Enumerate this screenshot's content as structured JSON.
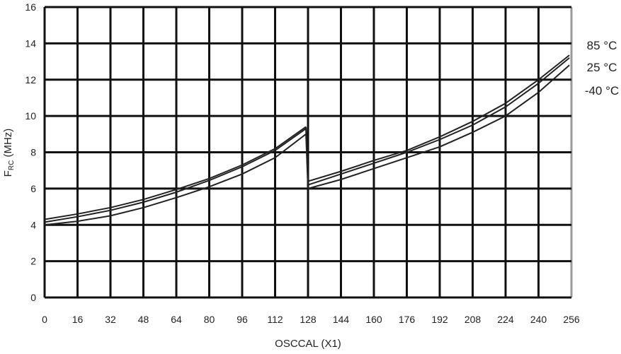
{
  "chart_data": {
    "type": "line",
    "title": "",
    "xlabel": "OSCCAL (X1)",
    "ylabel_main": "F",
    "ylabel_sub": "RC",
    "ylabel_unit": " (MHz)",
    "xlim": [
      0,
      256
    ],
    "ylim": [
      0,
      16
    ],
    "xticks": [
      0,
      16,
      32,
      48,
      64,
      80,
      96,
      112,
      128,
      144,
      160,
      176,
      192,
      208,
      224,
      240,
      256
    ],
    "yticks": [
      0,
      2,
      4,
      6,
      8,
      10,
      12,
      14,
      16
    ],
    "grid": true,
    "legend": "right (labels at curve ends)",
    "series": [
      {
        "name": "85 °C",
        "segments": [
          {
            "x": [
              0,
              16,
              32,
              48,
              64,
              80,
              96,
              112,
              127
            ],
            "y": [
              4.3,
              4.6,
              4.95,
              5.4,
              5.95,
              6.55,
              7.3,
              8.2,
              9.4
            ]
          },
          {
            "x": [
              128,
              144,
              160,
              176,
              192,
              208,
              224,
              240,
              255
            ],
            "y": [
              6.4,
              6.95,
              7.55,
              8.1,
              8.85,
              9.7,
              10.7,
              12.0,
              13.35
            ]
          }
        ]
      },
      {
        "name": "25 °C",
        "segments": [
          {
            "x": [
              0,
              16,
              32,
              48,
              64,
              80,
              96,
              112,
              127
            ],
            "y": [
              4.15,
              4.45,
              4.8,
              5.25,
              5.8,
              6.45,
              7.2,
              8.1,
              9.3
            ]
          },
          {
            "x": [
              128,
              144,
              160,
              176,
              192,
              208,
              224,
              240,
              255
            ],
            "y": [
              6.2,
              6.8,
              7.4,
              8.0,
              8.7,
              9.5,
              10.5,
              11.8,
              13.2
            ]
          }
        ]
      },
      {
        "name": "-40 °C",
        "segments": [
          {
            "x": [
              0,
              16,
              32,
              48,
              64,
              80,
              96,
              112,
              127
            ],
            "y": [
              4.0,
              4.2,
              4.5,
              4.95,
              5.5,
              6.1,
              6.8,
              7.7,
              9.0
            ]
          },
          {
            "x": [
              128,
              144,
              160,
              176,
              192,
              208,
              224,
              240,
              255
            ],
            "y": [
              6.0,
              6.5,
              7.1,
              7.7,
              8.3,
              9.1,
              10.0,
              11.3,
              12.8
            ]
          }
        ]
      }
    ],
    "colors": {
      "line": "#222222",
      "grid": "#111111",
      "frame_right": "#999999"
    }
  }
}
